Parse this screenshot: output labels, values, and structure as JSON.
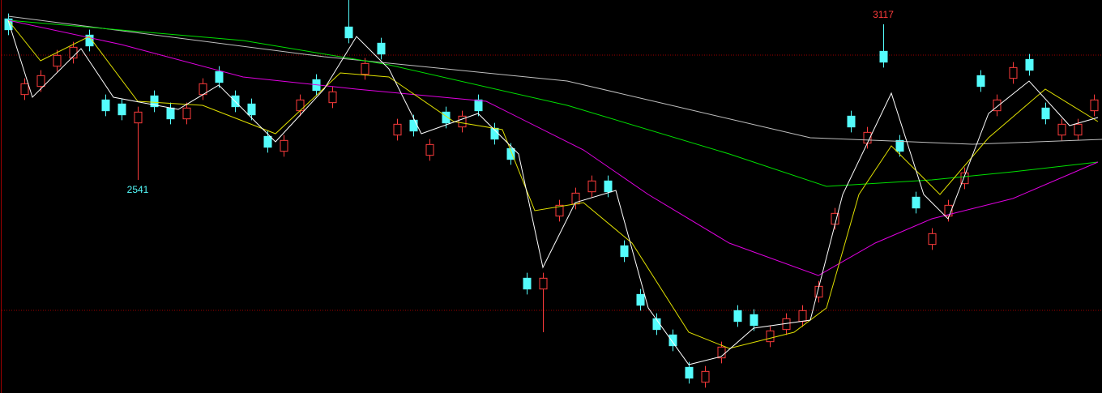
{
  "chart_data": {
    "type": "candlestick",
    "ylim": [
      1752,
      3207
    ],
    "up_color": "#ff3c3c",
    "down_color": "#54fcfc",
    "open": [
      3137,
      2857,
      2887,
      2962,
      2992,
      3077,
      2837,
      2822,
      2752,
      2852,
      2807,
      2767,
      2857,
      2942,
      2852,
      2822,
      2702,
      2647,
      2797,
      2912,
      2827,
      3107,
      2932,
      3047,
      2707,
      2762,
      2632,
      2792,
      2737,
      2837,
      2732,
      2657,
      2177,
      2137,
      2407,
      2452,
      2497,
      2537,
      2297,
      2117,
      2027,
      1967,
      1847,
      1792,
      1882,
      2057,
      2042,
      1942,
      1987,
      2017,
      2107,
      2377,
      2777,
      2677,
      3017,
      2687,
      2477,
      2302,
      2407,
      2527,
      2927,
      2797,
      2917,
      2987,
      2807,
      2707,
      2707,
      2797
    ],
    "high": [
      3157,
      2917,
      2947,
      3022,
      3052,
      3097,
      2857,
      2842,
      2812,
      2872,
      2827,
      2827,
      2917,
      2962,
      2872,
      2842,
      2722,
      2707,
      2857,
      2932,
      2887,
      3207,
      2992,
      3067,
      2767,
      2782,
      2692,
      2812,
      2797,
      2857,
      2752,
      2677,
      2197,
      2197,
      2467,
      2512,
      2557,
      2557,
      2317,
      2137,
      2047,
      1987,
      1867,
      1852,
      1942,
      2077,
      2062,
      2002,
      2047,
      2077,
      2167,
      2437,
      2797,
      2737,
      3117,
      2707,
      2497,
      2362,
      2467,
      2587,
      2947,
      2857,
      2977,
      3007,
      2827,
      2767,
      2767,
      2857
    ],
    "low": [
      3077,
      2837,
      2867,
      2942,
      2972,
      3017,
      2777,
      2762,
      2541,
      2792,
      2747,
      2747,
      2837,
      2882,
      2792,
      2762,
      2642,
      2627,
      2777,
      2852,
      2807,
      3047,
      2912,
      2987,
      2687,
      2702,
      2612,
      2732,
      2717,
      2777,
      2672,
      2597,
      2117,
      1977,
      2387,
      2432,
      2477,
      2477,
      2237,
      2057,
      1967,
      1907,
      1787,
      1772,
      1862,
      1997,
      1982,
      1922,
      1967,
      1997,
      2087,
      2357,
      2717,
      2657,
      2957,
      2627,
      2417,
      2282,
      2387,
      2507,
      2867,
      2777,
      2897,
      2927,
      2747,
      2687,
      2687,
      2777
    ],
    "close": [
      3097,
      2897,
      2927,
      3002,
      3032,
      3037,
      2797,
      2782,
      2792,
      2812,
      2767,
      2807,
      2897,
      2902,
      2812,
      2782,
      2662,
      2687,
      2837,
      2872,
      2867,
      3067,
      2972,
      3007,
      2747,
      2722,
      2672,
      2752,
      2777,
      2797,
      2692,
      2617,
      2137,
      2177,
      2447,
      2492,
      2537,
      2497,
      2257,
      2077,
      1987,
      1927,
      1807,
      1832,
      1922,
      2017,
      2002,
      1982,
      2027,
      2057,
      2147,
      2417,
      2737,
      2717,
      2977,
      2647,
      2437,
      2342,
      2447,
      2567,
      2887,
      2837,
      2957,
      2947,
      2767,
      2747,
      2747,
      2837
    ],
    "hlines": [
      3003,
      2058
    ],
    "hline_color": "#a00000",
    "lines": [
      {
        "color": "#c0c0c0",
        "x": [
          0,
          19.5,
          34.5,
          49.5,
          59.5,
          67.5
        ],
        "values": [
          3147,
          2997,
          2907,
          2697,
          2673,
          2691
        ]
      },
      {
        "color": "#00e000",
        "x": [
          0,
          14.5,
          23.5,
          34.5,
          44.5,
          50.5,
          57,
          62,
          67.25
        ],
        "values": [
          3132,
          3057,
          2967,
          2817,
          2637,
          2517,
          2541,
          2571,
          2607
        ]
      },
      {
        "color": "#e000e0",
        "x": [
          0,
          7,
          14.5,
          21.5,
          29.5,
          35.5,
          39.5,
          44.5,
          50,
          53.5,
          57,
          62,
          67.25
        ],
        "values": [
          3132,
          3042,
          2922,
          2877,
          2832,
          2652,
          2487,
          2307,
          2187,
          2307,
          2397,
          2472,
          2607
        ]
      },
      {
        "color": "#e0e000",
        "x": [
          0,
          2,
          5,
          8,
          12,
          16.5,
          20.5,
          23.5,
          27.5,
          30.5,
          32.5,
          35.5,
          38.5,
          42,
          44.5,
          48.5,
          50.5,
          52.5,
          54.5,
          57.5,
          60.5,
          64,
          67.25
        ],
        "values": [
          3132,
          2982,
          3072,
          2832,
          2817,
          2712,
          2937,
          2922,
          2757,
          2727,
          2427,
          2457,
          2307,
          1977,
          1917,
          1977,
          2067,
          2487,
          2667,
          2487,
          2697,
          2877,
          2757
        ]
      },
      {
        "color": "#ffffff",
        "x": [
          0,
          1.5,
          4.5,
          6.5,
          10.5,
          13,
          16.5,
          19.5,
          21.5,
          23.5,
          25.5,
          29,
          31.5,
          33,
          35,
          37.5,
          39.5,
          42,
          44,
          46,
          49.5,
          51.5,
          54.5,
          56.5,
          58,
          60.5,
          63,
          65.5,
          67.25
        ],
        "values": [
          3132,
          2847,
          3027,
          2847,
          2802,
          2892,
          2682,
          2877,
          3072,
          2952,
          2712,
          2787,
          2637,
          2217,
          2457,
          2502,
          2067,
          1857,
          1887,
          1992,
          2022,
          2487,
          2862,
          2487,
          2397,
          2787,
          2907,
          2742,
          2772
        ]
      }
    ]
  }
}
